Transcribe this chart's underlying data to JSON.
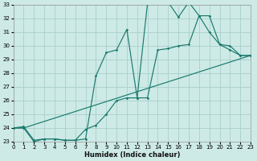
{
  "xlabel": "Humidex (Indice chaleur)",
  "xlim": [
    0,
    23
  ],
  "ylim": [
    23,
    33
  ],
  "xticks": [
    0,
    1,
    2,
    3,
    4,
    5,
    6,
    7,
    8,
    9,
    10,
    11,
    12,
    13,
    14,
    15,
    16,
    17,
    18,
    19,
    20,
    21,
    22,
    23
  ],
  "yticks": [
    23,
    24,
    25,
    26,
    27,
    28,
    29,
    30,
    31,
    32,
    33
  ],
  "bg_color": "#cdeae6",
  "grid_color": "#aacfcb",
  "line_color": "#1a7a6e",
  "curve1_x": [
    0,
    1,
    2,
    3,
    4,
    5,
    6,
    7,
    8,
    9,
    10,
    11,
    12,
    13,
    14,
    15,
    16,
    17,
    18,
    19,
    20,
    21,
    22,
    23
  ],
  "curve1_y": [
    24.0,
    24.0,
    23.0,
    23.2,
    23.2,
    23.1,
    23.1,
    23.2,
    27.8,
    29.5,
    29.7,
    31.2,
    26.2,
    33.1,
    33.2,
    33.2,
    32.1,
    33.2,
    32.2,
    31.0,
    30.1,
    29.7,
    29.3,
    29.3
  ],
  "curve2_x": [
    0,
    1,
    2,
    3,
    4,
    5,
    6,
    7,
    8,
    9,
    10,
    11,
    12,
    13,
    14,
    15,
    16,
    17,
    18,
    19,
    20,
    21,
    22,
    23
  ],
  "curve2_y": [
    24.0,
    24.1,
    23.1,
    23.2,
    23.2,
    23.1,
    23.1,
    23.9,
    24.2,
    25.0,
    26.0,
    26.2,
    26.2,
    26.2,
    29.7,
    29.8,
    30.0,
    30.1,
    32.2,
    32.2,
    30.1,
    30.0,
    29.3,
    29.3
  ],
  "curve3_x": [
    0,
    1,
    23
  ],
  "curve3_y": [
    24.0,
    24.0,
    29.3
  ]
}
